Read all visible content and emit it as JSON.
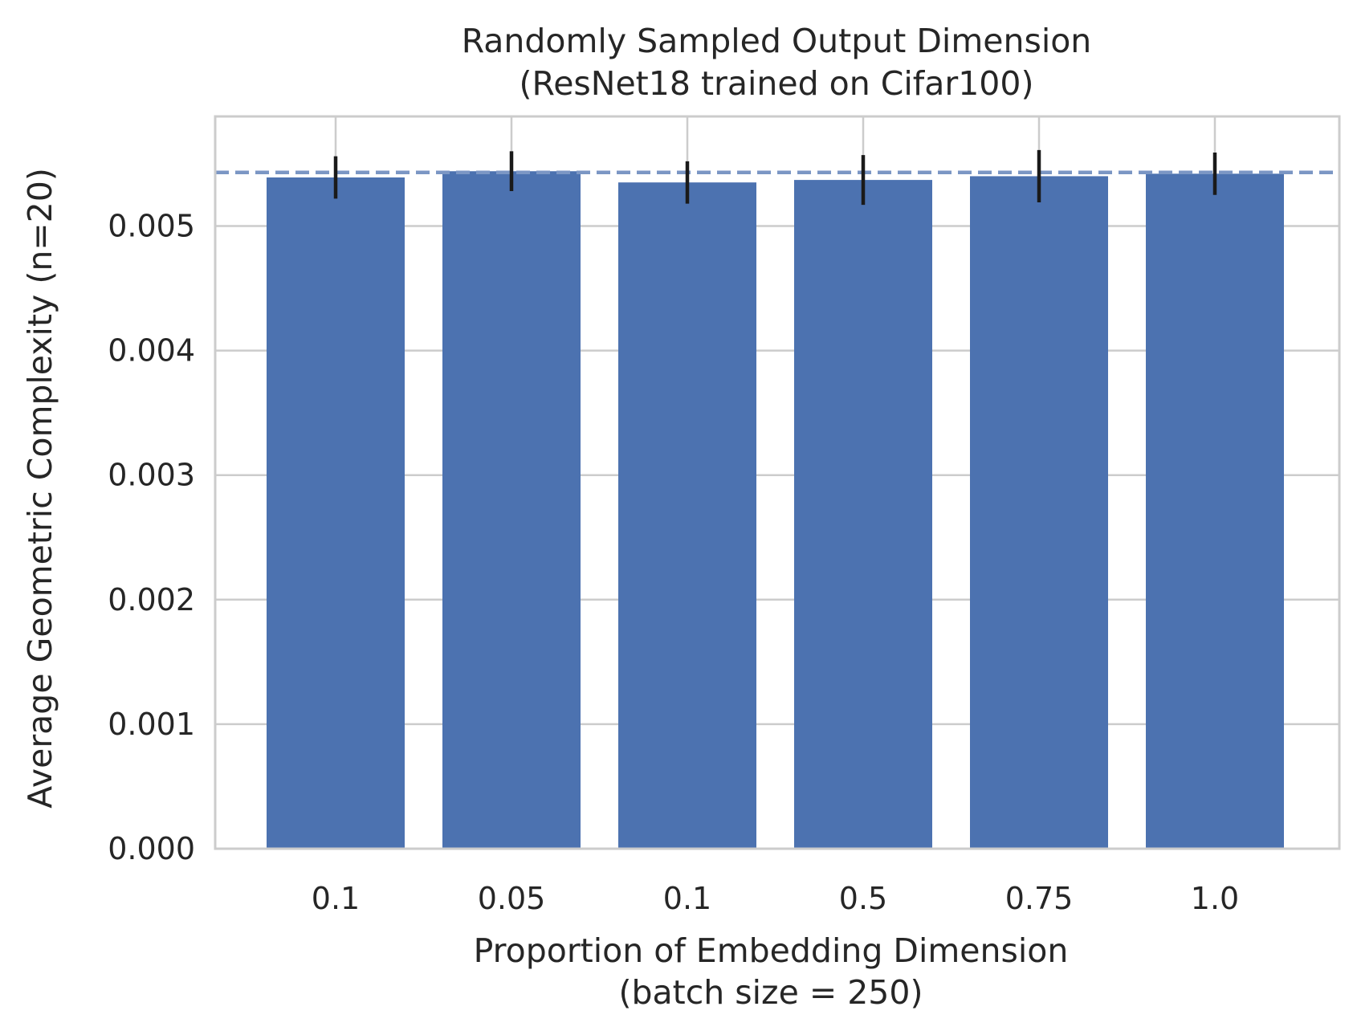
{
  "chart_data": {
    "type": "bar",
    "title": [
      "Randomly Sampled Output Dimension",
      "(ResNet18 trained on Cifar100)"
    ],
    "xlabel": [
      "Proportion of Embedding Dimension",
      "(batch size = 250)"
    ],
    "ylabel": "Average Geometric Complexity (n=20)",
    "categories": [
      "0.1",
      "0.05",
      "0.1",
      "0.5",
      "0.75",
      "1.0"
    ],
    "values": [
      0.00539,
      0.00544,
      0.00535,
      0.00537,
      0.0054,
      0.00542
    ],
    "error": [
      0.00017,
      0.00016,
      0.00017,
      0.0002,
      0.00021,
      0.00017
    ],
    "reference_line": 0.00543,
    "ylim": [
      0,
      0.00588
    ],
    "yticks": [
      "0.000",
      "0.001",
      "0.002",
      "0.003",
      "0.004",
      "0.005"
    ],
    "ytick_values": [
      0,
      0.001,
      0.002,
      0.003,
      0.004,
      0.005
    ],
    "grid": true,
    "colors": {
      "bar": "#4c72b0",
      "error_bar": "#1a1a1a",
      "reference_line": "#7b96c4",
      "grid": "#cccccc",
      "frame": "#cccccc"
    }
  }
}
